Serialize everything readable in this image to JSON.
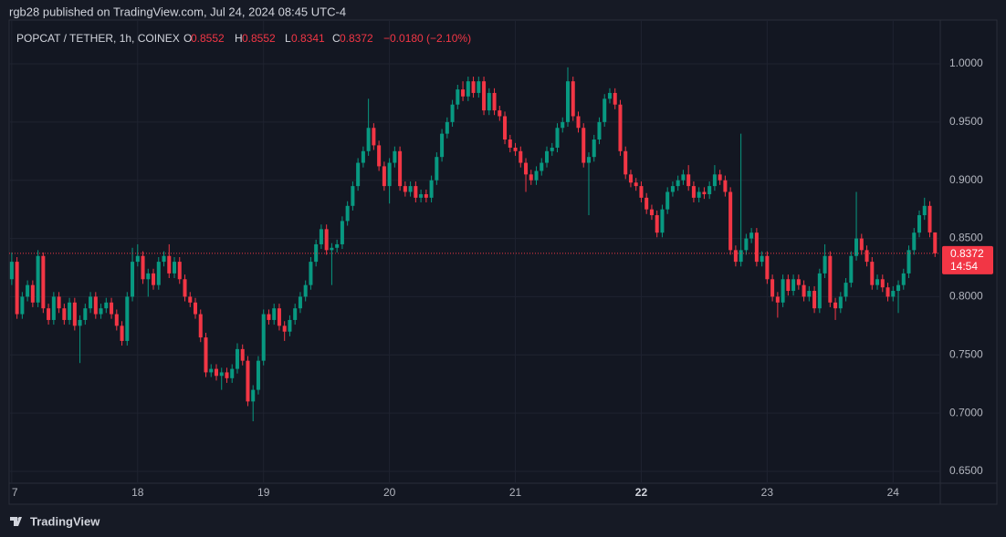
{
  "header": "rgb28 published on TradingView.com, Jul 24, 2024 08:45 UTC-4",
  "footer": "TradingView",
  "chart_data": {
    "type": "candlestick",
    "symbol": "POPCAT / TETHER, 1h, COINEX",
    "ohlc_letters": [
      "O",
      "H",
      "L",
      "C"
    ],
    "change": "−0.0180 (−2.10%)",
    "countdown": "14:54",
    "up_color": "#089981",
    "down_color": "#f23645",
    "grid": true,
    "xlim": [
      -0.5,
      177
    ],
    "ylim": [
      0.6398,
      1.0376
    ],
    "xticks": [
      {
        "value": 0,
        "label": "7"
      },
      {
        "value": 24,
        "label": "18"
      },
      {
        "value": 48,
        "label": "19"
      },
      {
        "value": 72,
        "label": "20"
      },
      {
        "value": 96,
        "label": "21"
      },
      {
        "value": 120,
        "label": "22"
      },
      {
        "value": 144,
        "label": "23"
      },
      {
        "value": 168,
        "label": "24"
      }
    ],
    "bold_xtick": 5,
    "yticks": [
      {
        "value": 0.65,
        "label": "0.6500"
      },
      {
        "value": 0.7,
        "label": "0.7000"
      },
      {
        "value": 0.75,
        "label": "0.7500"
      },
      {
        "value": 0.8,
        "label": "0.8000"
      },
      {
        "value": 0.85,
        "label": "0.8500"
      },
      {
        "value": 0.9,
        "label": "0.9000"
      },
      {
        "value": 0.95,
        "label": "0.9500"
      },
      {
        "value": 1,
        "label": "1.0000"
      }
    ],
    "open": [
      0.815,
      0.83,
      0.785,
      0.8,
      0.81,
      0.795,
      0.835,
      0.79,
      0.78,
      0.8,
      0.79,
      0.78,
      0.795,
      0.775,
      0.78,
      0.79,
      0.8,
      0.785,
      0.79,
      0.795,
      0.785,
      0.775,
      0.762,
      0.8,
      0.83,
      0.835,
      0.815,
      0.82,
      0.81,
      0.83,
      0.835,
      0.82,
      0.83,
      0.815,
      0.8,
      0.795,
      0.785,
      0.765,
      0.735,
      0.738,
      0.732,
      0.735,
      0.73,
      0.738,
      0.755,
      0.745,
      0.71,
      0.72,
      0.745,
      0.785,
      0.78,
      0.79,
      0.775,
      0.77,
      0.78,
      0.79,
      0.8,
      0.81,
      0.83,
      0.845,
      0.858,
      0.84,
      0.842,
      0.845,
      0.865,
      0.878,
      0.895,
      0.915,
      0.925,
      0.945,
      0.93,
      0.912,
      0.895,
      0.915,
      0.925,
      0.895,
      0.89,
      0.895,
      0.885,
      0.888,
      0.885,
      0.9,
      0.92,
      0.94,
      0.95,
      0.965,
      0.978,
      0.972,
      0.985,
      0.975,
      0.985,
      0.96,
      0.975,
      0.96,
      0.955,
      0.935,
      0.928,
      0.925,
      0.915,
      0.905,
      0.9,
      0.908,
      0.915,
      0.925,
      0.928,
      0.945,
      0.95,
      0.985,
      0.955,
      0.945,
      0.915,
      0.92,
      0.935,
      0.95,
      0.97,
      0.975,
      0.965,
      0.925,
      0.905,
      0.898,
      0.895,
      0.885,
      0.875,
      0.87,
      0.855,
      0.875,
      0.89,
      0.895,
      0.9,
      0.905,
      0.895,
      0.885,
      0.89,
      0.888,
      0.895,
      0.905,
      0.9,
      0.89,
      0.84,
      0.83,
      0.84,
      0.85,
      0.855,
      0.83,
      0.835,
      0.815,
      0.8,
      0.795,
      0.815,
      0.805,
      0.815,
      0.81,
      0.8,
      0.805,
      0.79,
      0.82,
      0.835,
      0.795,
      0.79,
      0.8,
      0.812,
      0.835,
      0.85,
      0.84,
      0.83,
      0.81,
      0.815,
      0.808,
      0.8,
      0.805,
      0.81,
      0.82,
      0.84,
      0.855,
      0.87,
      0.878,
      0.8552
    ],
    "high": [
      0.838,
      0.834,
      0.804,
      0.814,
      0.814,
      0.84,
      0.838,
      0.794,
      0.804,
      0.804,
      0.794,
      0.799,
      0.799,
      0.784,
      0.794,
      0.804,
      0.804,
      0.794,
      0.799,
      0.799,
      0.789,
      0.779,
      0.804,
      0.842,
      0.845,
      0.839,
      0.824,
      0.824,
      0.834,
      0.839,
      0.845,
      0.834,
      0.834,
      0.819,
      0.804,
      0.799,
      0.789,
      0.769,
      0.742,
      0.742,
      0.739,
      0.739,
      0.742,
      0.76,
      0.759,
      0.749,
      0.724,
      0.749,
      0.789,
      0.789,
      0.794,
      0.794,
      0.779,
      0.784,
      0.794,
      0.804,
      0.814,
      0.834,
      0.849,
      0.862,
      0.862,
      0.846,
      0.849,
      0.869,
      0.882,
      0.899,
      0.919,
      0.929,
      0.97,
      0.949,
      0.934,
      0.916,
      0.919,
      0.929,
      0.929,
      0.899,
      0.899,
      0.899,
      0.892,
      0.892,
      0.904,
      0.924,
      0.944,
      0.954,
      0.969,
      0.982,
      0.985,
      0.989,
      0.989,
      0.989,
      0.989,
      0.979,
      0.979,
      0.964,
      0.959,
      0.939,
      0.932,
      0.929,
      0.919,
      0.909,
      0.912,
      0.919,
      0.929,
      0.932,
      0.949,
      0.954,
      0.997,
      0.989,
      0.959,
      0.949,
      0.924,
      0.939,
      0.954,
      0.974,
      0.979,
      0.979,
      0.969,
      0.929,
      0.909,
      0.902,
      0.899,
      0.889,
      0.879,
      0.874,
      0.879,
      0.894,
      0.899,
      0.904,
      0.909,
      0.913,
      0.899,
      0.894,
      0.894,
      0.899,
      0.913,
      0.909,
      0.904,
      0.894,
      0.844,
      0.94,
      0.854,
      0.859,
      0.859,
      0.839,
      0.839,
      0.819,
      0.804,
      0.819,
      0.819,
      0.819,
      0.819,
      0.814,
      0.809,
      0.809,
      0.824,
      0.845,
      0.839,
      0.799,
      0.804,
      0.816,
      0.839,
      0.89,
      0.854,
      0.844,
      0.834,
      0.819,
      0.819,
      0.812,
      0.809,
      0.814,
      0.824,
      0.844,
      0.859,
      0.874,
      0.885,
      0.882,
      0.8552
    ],
    "low": [
      0.81,
      0.781,
      0.781,
      0.796,
      0.791,
      0.791,
      0.786,
      0.776,
      0.776,
      0.786,
      0.776,
      0.776,
      0.771,
      0.743,
      0.776,
      0.786,
      0.781,
      0.781,
      0.786,
      0.781,
      0.771,
      0.758,
      0.758,
      0.796,
      0.826,
      0.811,
      0.8,
      0.806,
      0.806,
      0.826,
      0.816,
      0.816,
      0.811,
      0.796,
      0.791,
      0.781,
      0.761,
      0.731,
      0.731,
      0.728,
      0.72,
      0.726,
      0.726,
      0.734,
      0.741,
      0.706,
      0.693,
      0.716,
      0.741,
      0.776,
      0.776,
      0.771,
      0.762,
      0.766,
      0.776,
      0.786,
      0.796,
      0.806,
      0.826,
      0.841,
      0.836,
      0.81,
      0.838,
      0.841,
      0.861,
      0.874,
      0.891,
      0.911,
      0.921,
      0.926,
      0.908,
      0.891,
      0.88,
      0.911,
      0.891,
      0.886,
      0.886,
      0.881,
      0.881,
      0.881,
      0.881,
      0.896,
      0.916,
      0.936,
      0.946,
      0.961,
      0.968,
      0.968,
      0.971,
      0.971,
      0.956,
      0.956,
      0.956,
      0.951,
      0.931,
      0.924,
      0.921,
      0.911,
      0.89,
      0.896,
      0.896,
      0.904,
      0.911,
      0.921,
      0.924,
      0.941,
      0.946,
      0.951,
      0.941,
      0.911,
      0.87,
      0.916,
      0.931,
      0.946,
      0.966,
      0.961,
      0.921,
      0.901,
      0.894,
      0.891,
      0.881,
      0.871,
      0.866,
      0.851,
      0.851,
      0.871,
      0.886,
      0.891,
      0.896,
      0.891,
      0.881,
      0.881,
      0.884,
      0.884,
      0.891,
      0.896,
      0.886,
      0.836,
      0.826,
      0.826,
      0.836,
      0.846,
      0.826,
      0.826,
      0.811,
      0.796,
      0.782,
      0.791,
      0.801,
      0.801,
      0.806,
      0.796,
      0.796,
      0.786,
      0.786,
      0.816,
      0.791,
      0.78,
      0.786,
      0.796,
      0.808,
      0.831,
      0.836,
      0.826,
      0.806,
      0.806,
      0.804,
      0.796,
      0.796,
      0.786,
      0.806,
      0.816,
      0.836,
      0.851,
      0.866,
      0.851,
      0.8341
    ],
    "close": [
      0.83,
      0.785,
      0.8,
      0.81,
      0.795,
      0.835,
      0.79,
      0.78,
      0.8,
      0.79,
      0.78,
      0.795,
      0.775,
      0.78,
      0.79,
      0.8,
      0.785,
      0.79,
      0.795,
      0.785,
      0.775,
      0.762,
      0.8,
      0.83,
      0.835,
      0.815,
      0.82,
      0.81,
      0.83,
      0.835,
      0.82,
      0.83,
      0.815,
      0.8,
      0.795,
      0.785,
      0.765,
      0.735,
      0.738,
      0.732,
      0.735,
      0.73,
      0.738,
      0.755,
      0.745,
      0.71,
      0.72,
      0.745,
      0.785,
      0.78,
      0.79,
      0.775,
      0.77,
      0.78,
      0.79,
      0.8,
      0.81,
      0.83,
      0.845,
      0.858,
      0.84,
      0.842,
      0.845,
      0.865,
      0.878,
      0.895,
      0.915,
      0.925,
      0.945,
      0.93,
      0.912,
      0.895,
      0.915,
      0.925,
      0.895,
      0.89,
      0.895,
      0.885,
      0.888,
      0.885,
      0.9,
      0.92,
      0.94,
      0.95,
      0.965,
      0.978,
      0.972,
      0.985,
      0.975,
      0.985,
      0.96,
      0.975,
      0.96,
      0.955,
      0.935,
      0.928,
      0.925,
      0.915,
      0.905,
      0.9,
      0.908,
      0.915,
      0.925,
      0.928,
      0.945,
      0.95,
      0.985,
      0.955,
      0.945,
      0.915,
      0.92,
      0.935,
      0.95,
      0.97,
      0.975,
      0.965,
      0.925,
      0.905,
      0.898,
      0.895,
      0.885,
      0.875,
      0.87,
      0.855,
      0.875,
      0.89,
      0.895,
      0.9,
      0.905,
      0.895,
      0.885,
      0.89,
      0.888,
      0.895,
      0.905,
      0.9,
      0.89,
      0.84,
      0.83,
      0.84,
      0.85,
      0.855,
      0.83,
      0.835,
      0.815,
      0.8,
      0.795,
      0.815,
      0.805,
      0.815,
      0.81,
      0.8,
      0.805,
      0.79,
      0.82,
      0.835,
      0.795,
      0.79,
      0.8,
      0.812,
      0.835,
      0.85,
      0.84,
      0.83,
      0.81,
      0.815,
      0.808,
      0.8,
      0.805,
      0.81,
      0.82,
      0.84,
      0.855,
      0.87,
      0.878,
      0.8552,
      0.8372
    ]
  }
}
